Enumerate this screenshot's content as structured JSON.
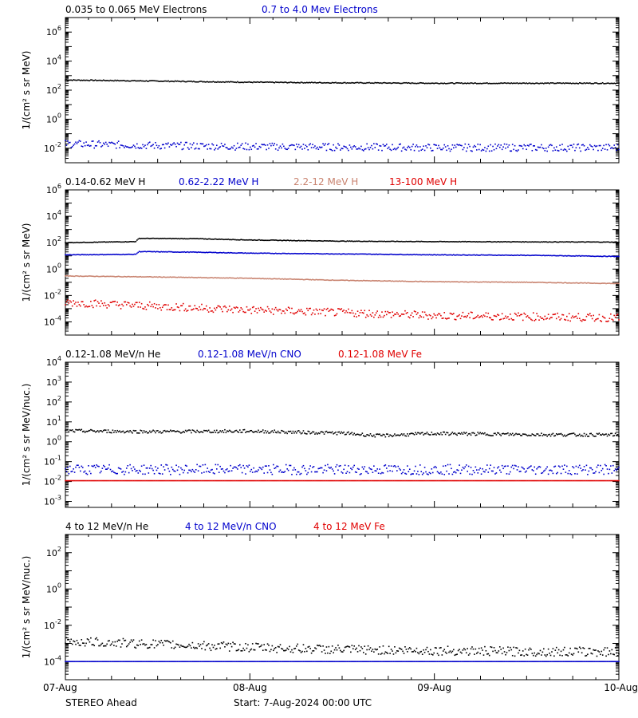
{
  "colors": {
    "black": "#000000",
    "blue": "#0000cc",
    "brown": "#c8826e",
    "red": "#e00000"
  },
  "x_ticks": [
    "07-Aug",
    "08-Aug",
    "09-Aug",
    "10-Aug"
  ],
  "footer": {
    "left": "STEREO Ahead",
    "right": "Start:  7-Aug-2024 00:00 UTC"
  },
  "chart_data": [
    {
      "type": "scatter",
      "y_scale": "log",
      "ylim_exp": [
        -3,
        7
      ],
      "ylabel": "1/(cm² s sr MeV)",
      "ytick_exponents": [
        6,
        4,
        2,
        0,
        -2
      ],
      "x_range_days": [
        0,
        3
      ],
      "series": [
        {
          "name": "0.035 to 0.065 MeV Electrons",
          "color": "black",
          "x": [
            0,
            0.5,
            1,
            1.5,
            2,
            2.5,
            3
          ],
          "y": [
            500,
            420,
            350,
            320,
            300,
            300,
            300
          ],
          "noise": 0.03
        },
        {
          "name": "0.7 to 4.0 Mev Electrons",
          "color": "blue",
          "x": [
            0,
            0.5,
            1,
            1.5,
            2,
            2.5,
            3
          ],
          "y": [
            0.02,
            0.015,
            0.013,
            0.012,
            0.011,
            0.011,
            0.011
          ],
          "noise": 0.25
        }
      ]
    },
    {
      "type": "scatter",
      "y_scale": "log",
      "ylim_exp": [
        -5,
        6
      ],
      "ylabel": "1/(cm² s sr MeV)",
      "ytick_exponents": [
        6,
        4,
        2,
        0,
        -2,
        -4
      ],
      "x_range_days": [
        0,
        3
      ],
      "series": [
        {
          "name": "0.14-0.62 MeV H",
          "color": "black",
          "x": [
            0,
            0.38,
            0.4,
            0.7,
            1.0,
            1.5,
            2.0,
            2.5,
            3.0
          ],
          "y": [
            100,
            120,
            210,
            200,
            160,
            130,
            120,
            115,
            110
          ],
          "noise": 0.02
        },
        {
          "name": "0.62-2.22 MeV H",
          "color": "blue",
          "x": [
            0,
            0.38,
            0.4,
            0.7,
            1.0,
            1.5,
            2.0,
            2.5,
            3.0
          ],
          "y": [
            12,
            13,
            21,
            19,
            16,
            14,
            12,
            11,
            9
          ],
          "noise": 0.02
        },
        {
          "name": "2.2-12 MeV H",
          "color": "brown",
          "x": [
            0,
            0.5,
            1.0,
            1.5,
            2.0,
            2.5,
            3.0
          ],
          "y": [
            0.3,
            0.25,
            0.2,
            0.14,
            0.11,
            0.1,
            0.08
          ],
          "noise": 0.02
        },
        {
          "name": "13-100 MeV H",
          "color": "red",
          "x": [
            0,
            0.5,
            1.0,
            1.5,
            2.0,
            2.5,
            3.0
          ],
          "y": [
            0.003,
            0.0015,
            0.0008,
            0.0005,
            0.0003,
            0.00025,
            0.0002
          ],
          "noise": 0.3
        }
      ]
    },
    {
      "type": "scatter",
      "y_scale": "log",
      "ylim_exp": [
        -3.3,
        4
      ],
      "ylabel": "1/(cm² s sr MeV/nuc.)",
      "ytick_exponents": [
        4,
        3,
        2,
        1,
        0,
        -1,
        -2,
        -3
      ],
      "x_range_days": [
        0,
        3
      ],
      "series": [
        {
          "name": "0.12-1.08 MeV/n He",
          "color": "black",
          "x": [
            0,
            0.5,
            1.0,
            1.5,
            1.7,
            2.0,
            2.5,
            3.0
          ],
          "y": [
            3.5,
            3.2,
            3.4,
            2.7,
            2.0,
            2.6,
            2.3,
            2.2
          ],
          "noise": 0.08
        },
        {
          "name": "0.12-1.08 MeV/n CNO",
          "color": "blue",
          "x": [
            0,
            1.5,
            3.0
          ],
          "y": [
            0.04,
            0.04,
            0.04
          ],
          "noise": 0.25
        },
        {
          "name": "0.12-1.08 MeV Fe",
          "color": "red",
          "x": [
            0,
            1.5,
            3.0
          ],
          "y": [
            0.011,
            0.011,
            0.011
          ],
          "noise": 0.0
        }
      ]
    },
    {
      "type": "scatter",
      "y_scale": "log",
      "ylim_exp": [
        -5,
        3
      ],
      "ylabel": "1/(cm² s sr MeV/nuc.)",
      "ytick_exponents": [
        2,
        0,
        -2,
        -4
      ],
      "x_range_days": [
        0,
        3
      ],
      "series": [
        {
          "name": "4 to 12 MeV/n He",
          "color": "black",
          "x": [
            0,
            0.5,
            1.0,
            1.5,
            2.0,
            2.5,
            3.0
          ],
          "y": [
            0.0013,
            0.0009,
            0.0006,
            0.00045,
            0.0004,
            0.00035,
            0.00035
          ],
          "noise": 0.25
        },
        {
          "name": "4 to 12 MeV/n CNO",
          "color": "blue",
          "x": [
            0,
            1.5,
            3.0
          ],
          "y": [
            0.0001,
            0.0001,
            0.0001
          ],
          "noise": 0.0
        },
        {
          "name": "4 to 12 MeV Fe",
          "color": "red",
          "x": [],
          "y": [],
          "noise": 0.0
        }
      ]
    }
  ]
}
